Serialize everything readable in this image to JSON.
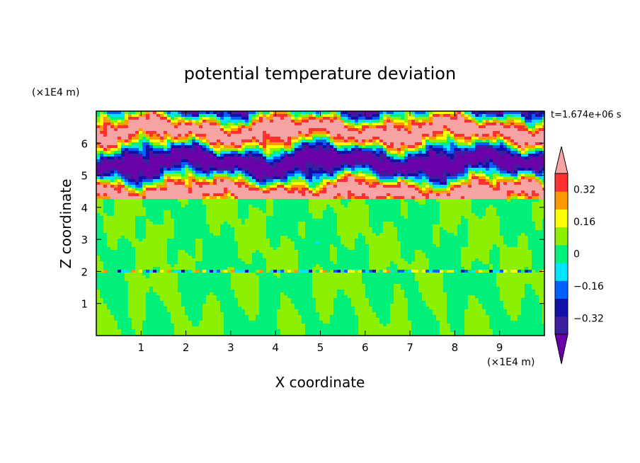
{
  "chart_data": {
    "type": "heatmap",
    "title": "potential temperature deviation",
    "xlabel": "X coordinate",
    "ylabel": "Z coordinate",
    "x_unit": "(×1E4 m)",
    "y_unit": "(×1E4 m)",
    "time_label": "t=1.674e+06 s",
    "xlim": [
      0,
      10
    ],
    "ylim": [
      0,
      7
    ],
    "x_ticks": [
      "1",
      "2",
      "3",
      "4",
      "5",
      "6",
      "7",
      "8",
      "9"
    ],
    "y_ticks": [
      "1",
      "2",
      "3",
      "4",
      "5",
      "6"
    ],
    "colorbar": {
      "levels": [
        -0.4,
        -0.32,
        -0.24,
        -0.16,
        -0.08,
        0,
        0.08,
        0.16,
        0.24,
        0.32,
        0.4
      ],
      "tick_labels": [
        "0.32",
        "0.16",
        "0",
        "-0.16",
        "-0.32"
      ],
      "tick_values": [
        0.32,
        0.16,
        0,
        -0.16,
        -0.32
      ],
      "colors_low_to_high": [
        "#6a00a8",
        "#3c1fa0",
        "#1010a8",
        "#0060ff",
        "#00e5ff",
        "#00f07a",
        "#8cf000",
        "#ffff00",
        "#ff9900",
        "#ff3030",
        "#f5a3a3"
      ],
      "extend": "both"
    },
    "regions": [
      {
        "name": "upper layer",
        "z_range": [
          4.3,
          7.0
        ],
        "pattern": "alternating bands of -0.4 and +0.4 with strong gradients"
      },
      {
        "name": "lower layer",
        "z_range": [
          0,
          4.3
        ],
        "pattern": "values near 0 to +0.08 with weak variation"
      },
      {
        "name": "interface",
        "z": 2.0,
        "pattern": "thin line of mixed values"
      }
    ]
  },
  "colors": {
    "background": "#ffffff",
    "frame": "#000000"
  }
}
